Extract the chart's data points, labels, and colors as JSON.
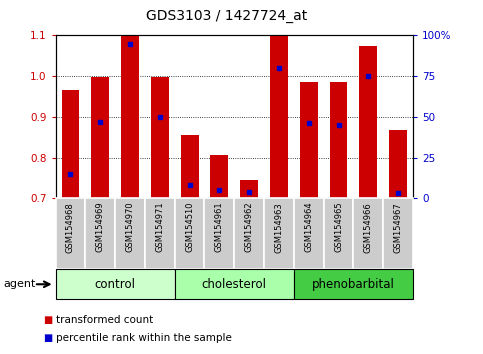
{
  "title": "GDS3103 / 1427724_at",
  "samples": [
    "GSM154968",
    "GSM154969",
    "GSM154970",
    "GSM154971",
    "GSM154510",
    "GSM154961",
    "GSM154962",
    "GSM154963",
    "GSM154964",
    "GSM154965",
    "GSM154966",
    "GSM154967"
  ],
  "transformed_count": [
    0.965,
    0.998,
    1.1,
    0.998,
    0.855,
    0.805,
    0.745,
    1.1,
    0.985,
    0.985,
    1.075,
    0.868
  ],
  "percentile_rank": [
    15,
    47,
    95,
    50,
    8,
    5,
    4,
    80,
    46,
    45,
    75,
    3
  ],
  "groups": [
    {
      "name": "control",
      "start": 0,
      "end": 4,
      "color": "#ccffcc"
    },
    {
      "name": "cholesterol",
      "start": 4,
      "end": 8,
      "color": "#aaffaa"
    },
    {
      "name": "phenobarbital",
      "start": 8,
      "end": 12,
      "color": "#44cc44"
    }
  ],
  "ylim_left": [
    0.7,
    1.1
  ],
  "ylim_right": [
    0,
    100
  ],
  "bar_color": "#cc0000",
  "dot_color": "#0000cc",
  "ylabel_left_color": "#cc0000",
  "ylabel_right_color": "#0000cc",
  "yticks_left": [
    0.7,
    0.8,
    0.9,
    1.0,
    1.1
  ],
  "yticks_right": [
    0,
    25,
    50,
    75,
    100
  ],
  "ytick_right_labels": [
    "0",
    "25",
    "50",
    "75",
    "100%"
  ],
  "background_color": "#ffffff",
  "agent_label": "agent",
  "legend_items": [
    "transformed count",
    "percentile rank within the sample"
  ],
  "legend_colors": [
    "#cc0000",
    "#0000cc"
  ]
}
